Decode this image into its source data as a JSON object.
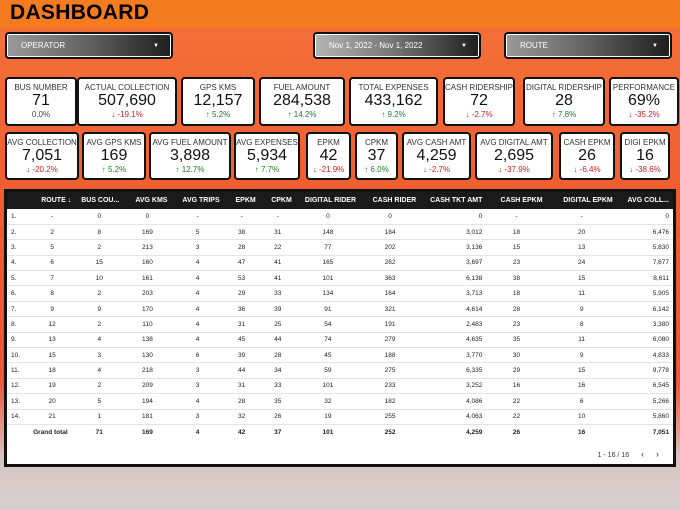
{
  "header": {
    "title": "DASHBOARD"
  },
  "filters": {
    "operator": "OPERATOR",
    "date_range": "Nov 1, 2022 - Nov 1, 2022",
    "route": "ROUTE"
  },
  "kpis_row1": [
    {
      "label": "BUS NUMBER",
      "value": "71",
      "change": "0.0%",
      "dir": "neutral"
    },
    {
      "label": "ACTUAL COLLECTION",
      "value": "507,690",
      "change": "-19.1%",
      "dir": "down"
    },
    {
      "label": "GPS KMS",
      "value": "12,157",
      "change": "5.2%",
      "dir": "up"
    },
    {
      "label": "FUEL AMOUNT",
      "value": "284,538",
      "change": "14.2%",
      "dir": "up"
    },
    {
      "label": "TOTAL EXPENSES",
      "value": "433,162",
      "change": "9.2%",
      "dir": "up"
    },
    {
      "label": "CASH RIDERSHIP",
      "value": "72",
      "change": "-2.7%",
      "dir": "down"
    },
    {
      "label": "DIGITAL RIDERSHIP",
      "value": "28",
      "change": "7.8%",
      "dir": "up"
    },
    {
      "label": "PERFORMANCE",
      "value": "69%",
      "change": "-35.2%",
      "dir": "down"
    }
  ],
  "kpis_row2": [
    {
      "label": "AVG COLLECTION",
      "value": "7,051",
      "change": "-20.2%",
      "dir": "down"
    },
    {
      "label": "AVG GPS KMS",
      "value": "169",
      "change": "5.2%",
      "dir": "up"
    },
    {
      "label": "AVG FUEL AMOUNT",
      "value": "3,898",
      "change": "12.7%",
      "dir": "up"
    },
    {
      "label": "AVG EXPENSES",
      "value": "5,934",
      "change": "7.7%",
      "dir": "up"
    },
    {
      "label": "EPKM",
      "value": "42",
      "change": "-21.9%",
      "dir": "down"
    },
    {
      "label": "CPKM",
      "value": "37",
      "change": "6.0%",
      "dir": "up"
    },
    {
      "label": "AVG CASH AMT",
      "value": "4,259",
      "change": "-2.7%",
      "dir": "down"
    },
    {
      "label": "AVG DIGITAL AMT",
      "value": "2,695",
      "change": "-37.9%",
      "dir": "down"
    },
    {
      "label": "CASH EPKM",
      "value": "26",
      "change": "-6.4%",
      "dir": "down"
    },
    {
      "label": "DIGI EPKM",
      "value": "16",
      "change": "-38.6%",
      "dir": "down"
    }
  ],
  "table": {
    "columns": [
      "",
      "ROUTE ↓",
      "BUS COU...",
      "AVG KMS",
      "AVG TRIPS",
      "EPKM",
      "CPKM",
      "DIGITAL RIDER",
      "CASH RIDER",
      "CASH TKT AMT",
      "CASH EPKM",
      "DIGITAL EPKM",
      "AVG COLL..."
    ],
    "rows": [
      [
        "1.",
        "-",
        "0",
        "0",
        "-",
        "-",
        "-",
        "0",
        "0",
        "0",
        "-",
        "-",
        "0"
      ],
      [
        "2.",
        "2",
        "8",
        "169",
        "5",
        "38",
        "31",
        "148",
        "184",
        "3,012",
        "18",
        "20",
        "6,476"
      ],
      [
        "3.",
        "5",
        "2",
        "213",
        "3",
        "28",
        "22",
        "77",
        "202",
        "3,136",
        "15",
        "13",
        "5,830"
      ],
      [
        "4.",
        "6",
        "15",
        "160",
        "4",
        "47",
        "41",
        "165",
        "262",
        "3,697",
        "23",
        "24",
        "7,677"
      ],
      [
        "5.",
        "7",
        "10",
        "161",
        "4",
        "53",
        "41",
        "101",
        "363",
        "6,138",
        "38",
        "15",
        "8,611"
      ],
      [
        "6.",
        "8",
        "2",
        "203",
        "4",
        "29",
        "33",
        "134",
        "164",
        "3,713",
        "18",
        "11",
        "5,905"
      ],
      [
        "7.",
        "9",
        "9",
        "170",
        "4",
        "36",
        "39",
        "91",
        "321",
        "4,614",
        "28",
        "9",
        "6,142"
      ],
      [
        "8.",
        "12",
        "2",
        "110",
        "4",
        "31",
        "25",
        "54",
        "191",
        "2,483",
        "23",
        "8",
        "3,380"
      ],
      [
        "9.",
        "13",
        "4",
        "138",
        "4",
        "45",
        "44",
        "74",
        "279",
        "4,635",
        "35",
        "11",
        "6,080"
      ],
      [
        "10.",
        "15",
        "3",
        "130",
        "6",
        "39",
        "28",
        "45",
        "188",
        "3,770",
        "30",
        "9",
        "4,833"
      ],
      [
        "11.",
        "18",
        "4",
        "218",
        "3",
        "44",
        "34",
        "59",
        "275",
        "6,335",
        "29",
        "15",
        "9,778"
      ],
      [
        "12.",
        "19",
        "2",
        "209",
        "3",
        "31",
        "33",
        "101",
        "233",
        "3,252",
        "16",
        "16",
        "6,545"
      ],
      [
        "13.",
        "20",
        "5",
        "194",
        "4",
        "28",
        "35",
        "32",
        "182",
        "4,086",
        "22",
        "6",
        "5,266"
      ],
      [
        "14.",
        "21",
        "1",
        "181",
        "3",
        "32",
        "26",
        "19",
        "255",
        "4,063",
        "22",
        "10",
        "5,860"
      ]
    ],
    "total": [
      "",
      "Grand total",
      "71",
      "169",
      "4",
      "42",
      "37",
      "101",
      "252",
      "4,259",
      "26",
      "16",
      "7,051"
    ],
    "pagination": "1 - 16 / 16",
    "prev_icon": "‹",
    "next_icon": "›"
  }
}
